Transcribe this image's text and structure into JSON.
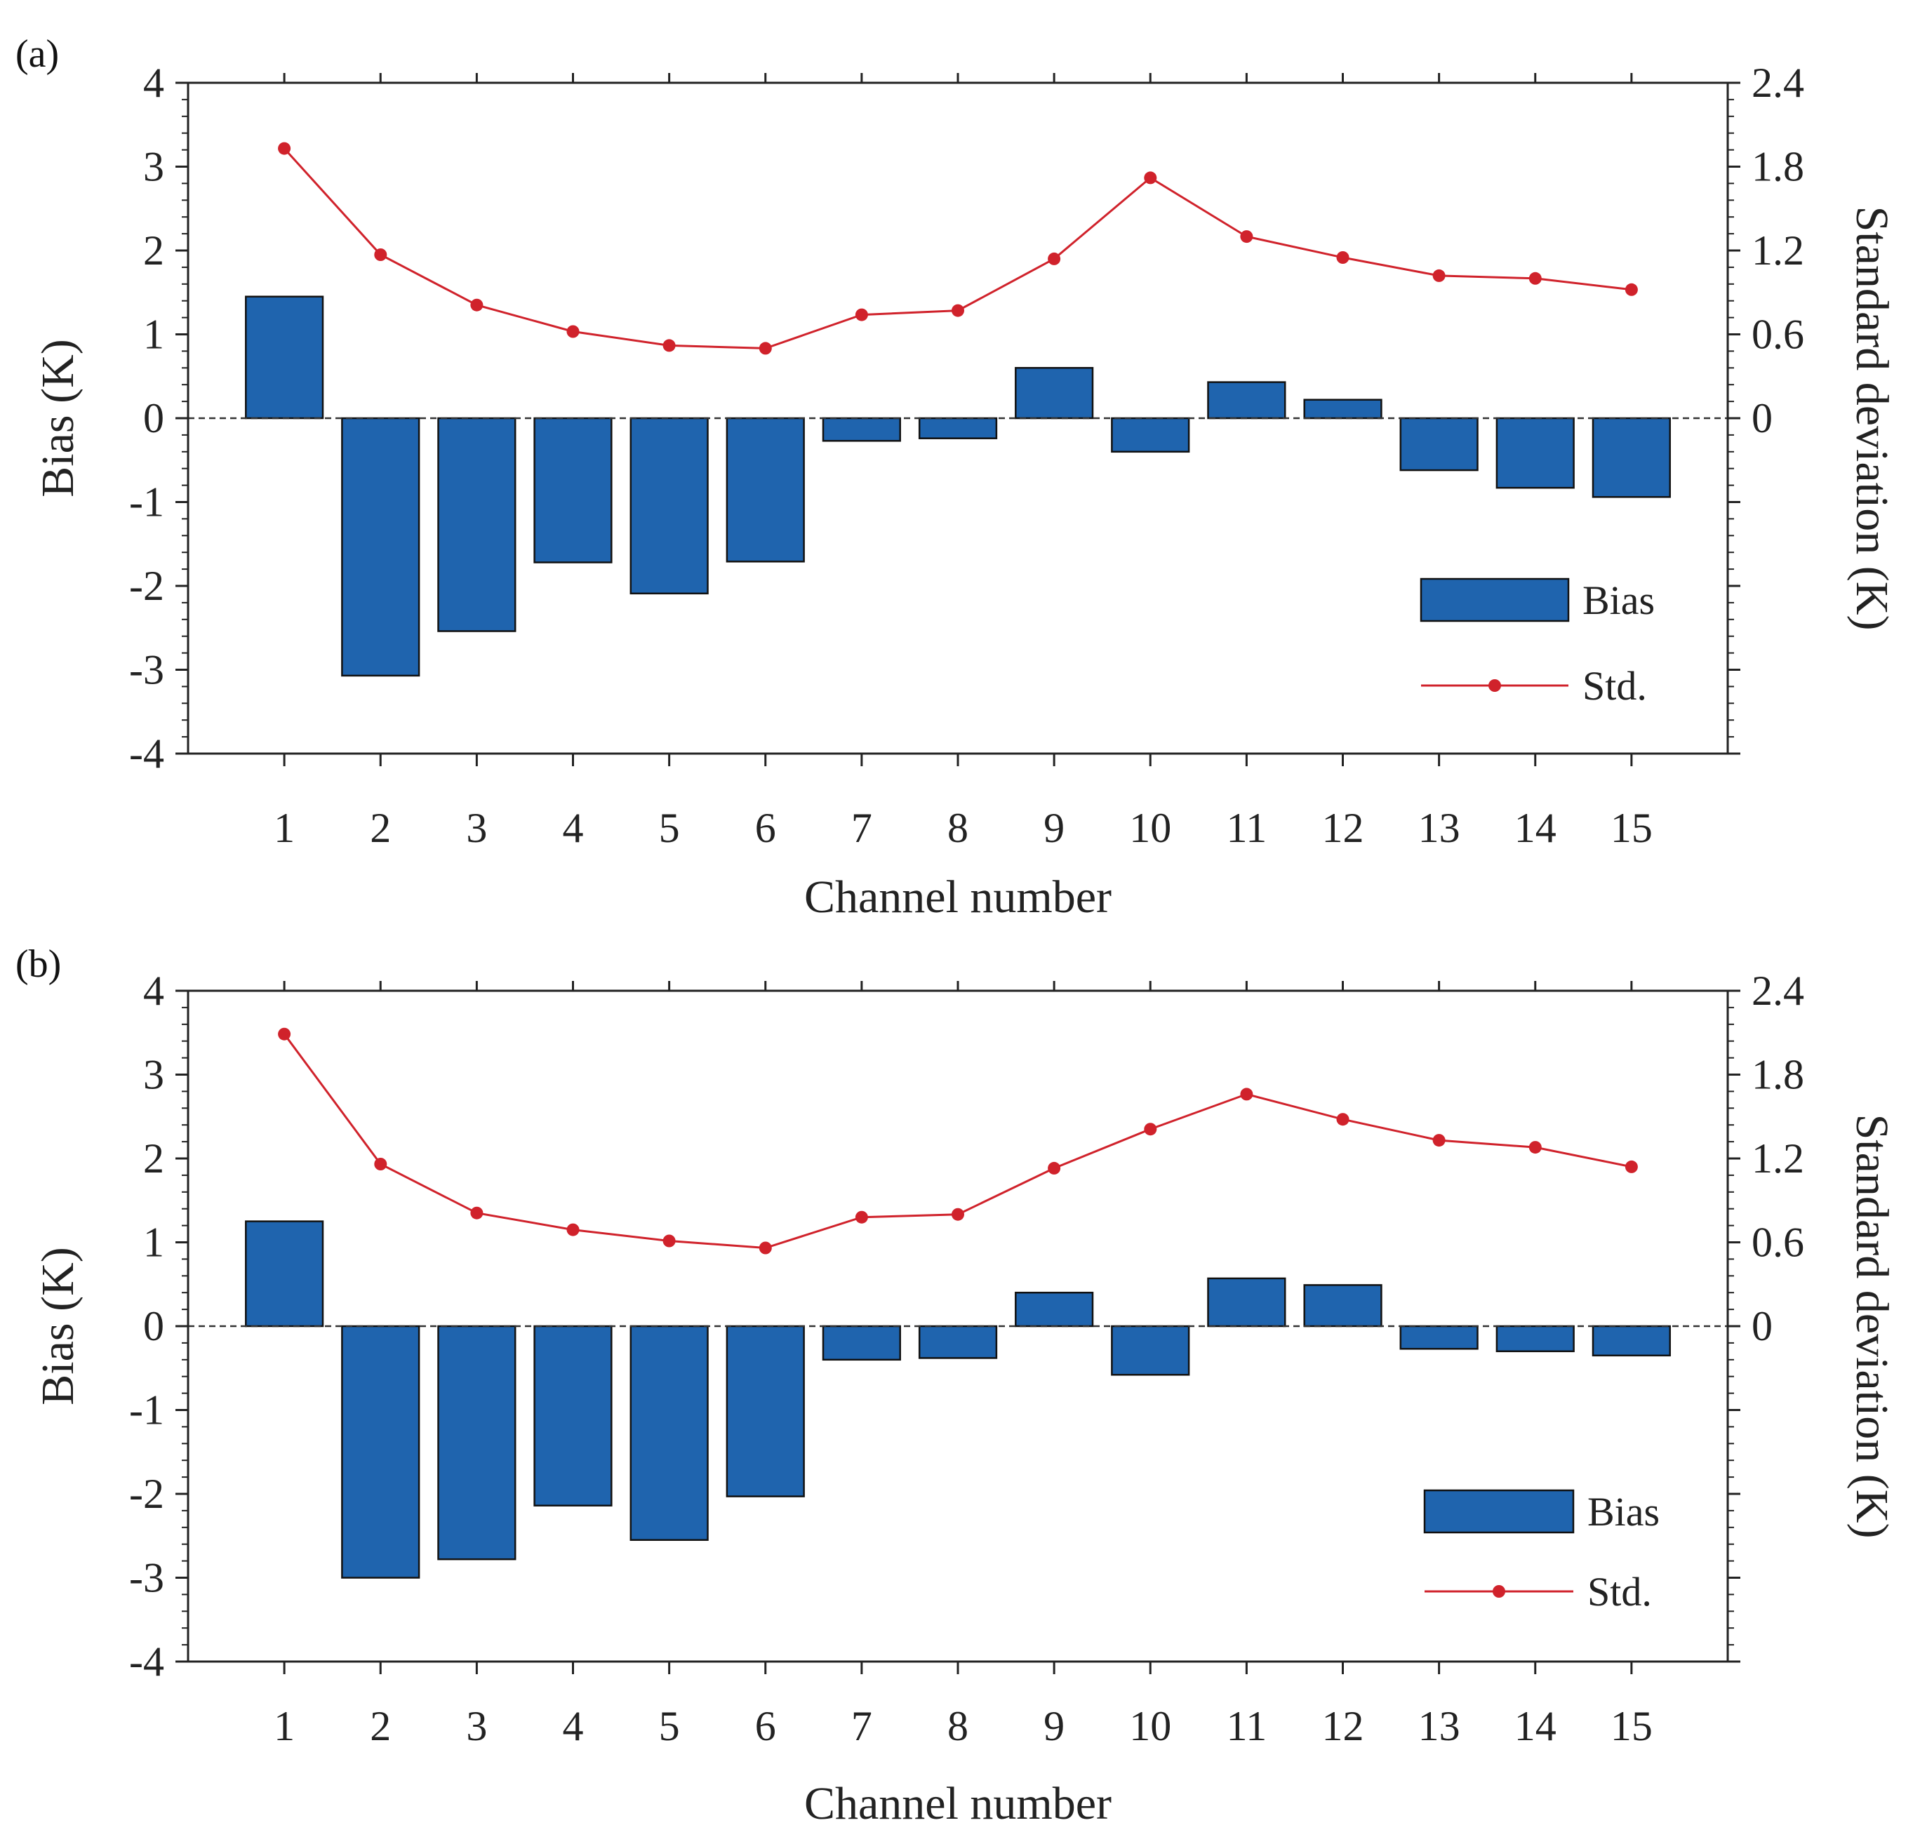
{
  "colors": {
    "bar": "#1F64AE",
    "bar_edge": "#111111",
    "line": "#D0222B",
    "axis": "#222222"
  },
  "chart_data": [
    {
      "type": "bar",
      "panel_label": "(a)",
      "categories": [
        "1",
        "2",
        "3",
        "4",
        "5",
        "6",
        "7",
        "8",
        "9",
        "10",
        "11",
        "12",
        "13",
        "14",
        "15"
      ],
      "series": [
        {
          "name": "Bias",
          "axis": "left",
          "kind": "bar",
          "values": [
            1.45,
            -3.07,
            -2.54,
            -1.72,
            -2.09,
            -1.71,
            -0.27,
            -0.24,
            0.6,
            -0.4,
            0.43,
            0.22,
            -0.62,
            -0.83,
            -0.94
          ]
        },
        {
          "name": "Std.",
          "axis": "right",
          "kind": "line",
          "values": [
            1.93,
            1.17,
            0.81,
            0.62,
            0.52,
            0.5,
            0.74,
            0.77,
            1.14,
            1.72,
            1.3,
            1.15,
            1.02,
            1.0,
            0.92
          ]
        }
      ],
      "xlabel": "Channel number",
      "ylabel": "Bias (K)",
      "y2label": "Standard deviation (K)",
      "ylim": [
        -4,
        4
      ],
      "y2lim": [
        -2.4,
        2.4
      ],
      "yticks": [
        "4",
        "3",
        "2",
        "1",
        "0",
        "-1",
        "-2",
        "-3",
        "-4"
      ],
      "y2ticks": [
        "2.4",
        "1.8",
        "1.2",
        "0.6",
        "0"
      ],
      "legend": {
        "position": "lower-right",
        "entries": [
          "Bias",
          "Std."
        ]
      }
    },
    {
      "type": "bar",
      "panel_label": "(b)",
      "categories": [
        "1",
        "2",
        "3",
        "4",
        "5",
        "6",
        "7",
        "8",
        "9",
        "10",
        "11",
        "12",
        "13",
        "14",
        "15"
      ],
      "series": [
        {
          "name": "Bias",
          "axis": "left",
          "kind": "bar",
          "values": [
            1.25,
            -3.0,
            -2.78,
            -2.14,
            -2.55,
            -2.03,
            -0.4,
            -0.38,
            0.4,
            -0.58,
            0.57,
            0.49,
            -0.27,
            -0.3,
            -0.35
          ]
        },
        {
          "name": "Std.",
          "axis": "right",
          "kind": "line",
          "values": [
            2.09,
            1.16,
            0.81,
            0.69,
            0.61,
            0.56,
            0.78,
            0.8,
            1.13,
            1.41,
            1.66,
            1.48,
            1.33,
            1.28,
            1.14
          ]
        }
      ],
      "xlabel": "Channel number",
      "ylabel": "Bias (K)",
      "y2label": "Standard deviation (K)",
      "ylim": [
        -4,
        4
      ],
      "y2lim": [
        -2.4,
        2.4
      ],
      "yticks": [
        "4",
        "3",
        "2",
        "1",
        "0",
        "-1",
        "-2",
        "-3",
        "-4"
      ],
      "y2ticks": [
        "2.4",
        "1.8",
        "1.2",
        "0.6",
        "0"
      ],
      "legend": {
        "position": "lower-right",
        "entries": [
          "Bias",
          "Std."
        ]
      }
    }
  ]
}
